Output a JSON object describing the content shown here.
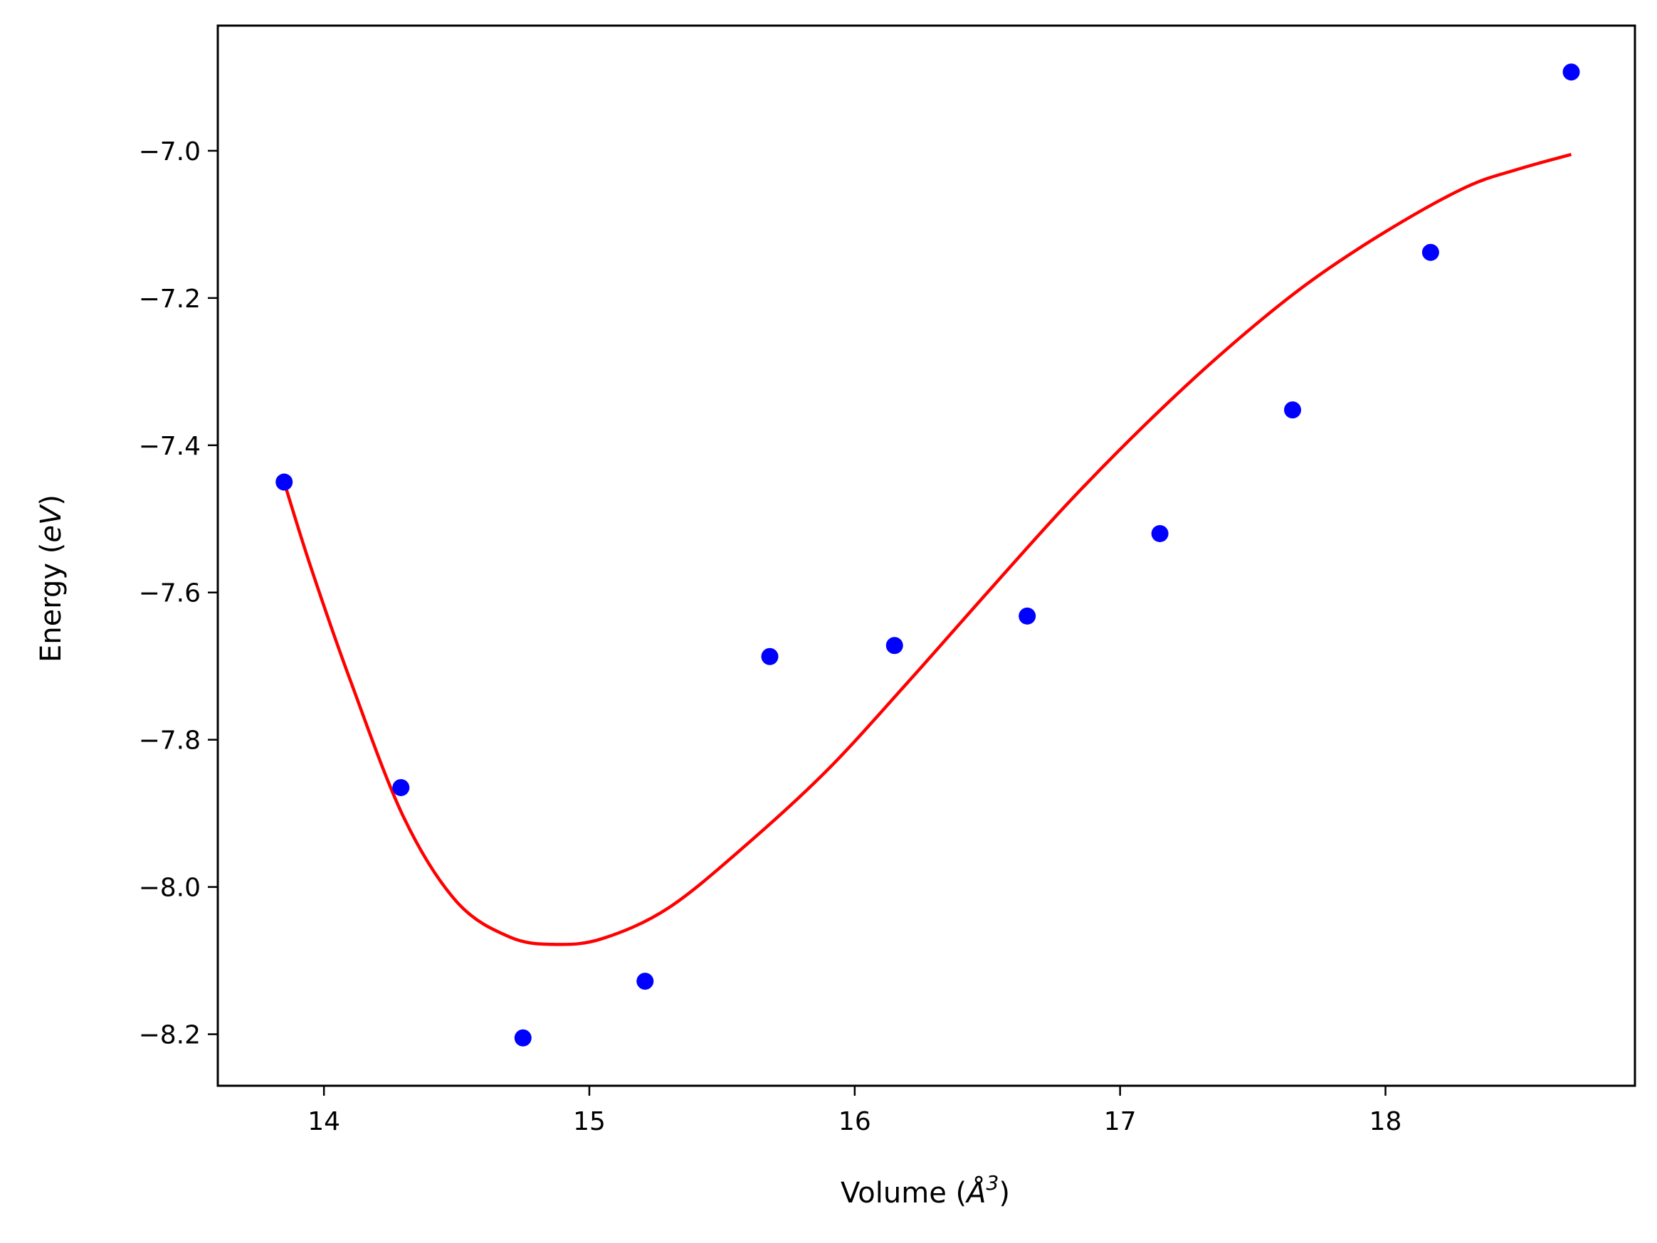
{
  "chart_data": {
    "type": "scatter",
    "xlabel": "Volume",
    "xlabel_unit_base": "Å",
    "xlabel_unit_exp": "3",
    "ylabel": "Energy",
    "ylabel_unit": "eV",
    "xlim": [
      13.6,
      18.94
    ],
    "ylim": [
      -8.27,
      -6.83
    ],
    "xticks": [
      14,
      15,
      16,
      17,
      18
    ],
    "xtick_labels": [
      "14",
      "15",
      "16",
      "17",
      "18"
    ],
    "yticks": [
      -8.2,
      -8.0,
      -7.8,
      -7.6,
      -7.4,
      -7.2,
      -7.0
    ],
    "ytick_labels": [
      "−8.2",
      "−8.0",
      "−7.8",
      "−7.6",
      "−7.4",
      "−7.2",
      "−7.0"
    ],
    "grid": false,
    "legend": false,
    "series": [
      {
        "kind": "points",
        "color": "#0000ff",
        "x": [
          13.85,
          14.29,
          14.75,
          15.21,
          15.68,
          16.15,
          16.65,
          17.15,
          17.65,
          18.17,
          18.7
        ],
        "y": [
          -7.45,
          -7.865,
          -8.205,
          -8.128,
          -7.687,
          -7.672,
          -7.632,
          -7.52,
          -7.352,
          -7.138,
          -6.893
        ]
      },
      {
        "kind": "line",
        "color": "#ff0000",
        "x": [
          13.85,
          13.95,
          14.1,
          14.3,
          14.5,
          14.7,
          14.87,
          15.05,
          15.3,
          15.6,
          15.9,
          16.2,
          16.5,
          16.8,
          17.1,
          17.4,
          17.7,
          18.0,
          18.3,
          18.5,
          18.7
        ],
        "y": [
          -7.45,
          -7.565,
          -7.72,
          -7.905,
          -8.02,
          -8.068,
          -8.078,
          -8.07,
          -8.028,
          -7.94,
          -7.84,
          -7.722,
          -7.6,
          -7.48,
          -7.37,
          -7.27,
          -7.182,
          -7.11,
          -7.05,
          -7.025,
          -7.005
        ]
      }
    ]
  }
}
